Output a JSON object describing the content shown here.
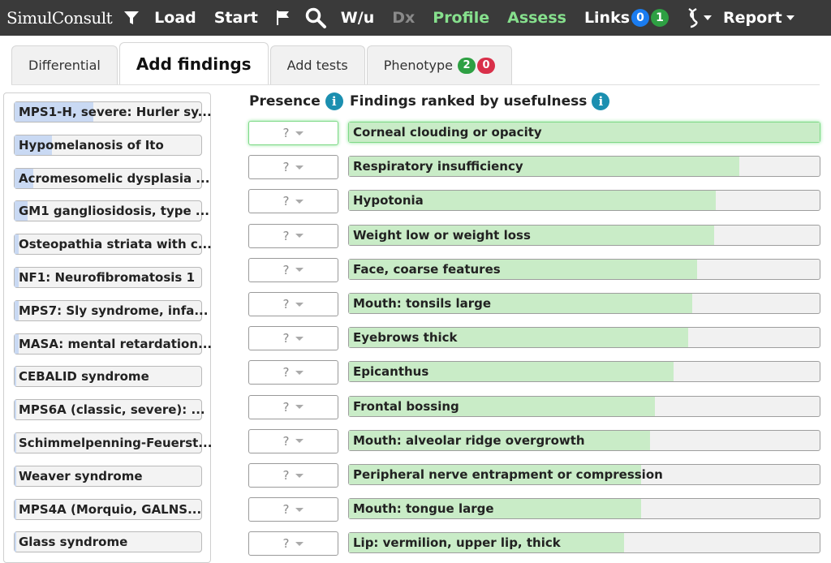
{
  "navbar": {
    "brand": "SimulConsult",
    "load": "Load",
    "start": "Start",
    "wu": "W/u",
    "dx": "Dx",
    "profile": "Profile",
    "assess": "Assess",
    "links": "Links",
    "links_badges": [
      "0",
      "1"
    ],
    "report": "Report",
    "colors": {
      "bar": "#3a3a3a",
      "green_text": "#86e08d",
      "badge_blue": "#1a7cf0",
      "badge_green": "#2ea043"
    }
  },
  "tabs": [
    {
      "label": "Differential",
      "active": false
    },
    {
      "label": "Add findings",
      "active": true
    },
    {
      "label": "Add tests",
      "active": false
    },
    {
      "label": "Phenotype",
      "active": false,
      "badges": [
        "2",
        "0"
      ]
    }
  ],
  "headers": {
    "presence": "Presence",
    "findings": "Findings ranked by usefulness"
  },
  "differential": [
    {
      "label": "MPS1-H, severe: Hurler sy...",
      "fill": 0.42
    },
    {
      "label": "Hypomelanosis of Ito",
      "fill": 0.2
    },
    {
      "label": "Acromesomelic dysplasia ...",
      "fill": 0.1
    },
    {
      "label": "GM1 gangliosidosis, type ...",
      "fill": 0.07
    },
    {
      "label": "Osteopathia striata with c...",
      "fill": 0.02
    },
    {
      "label": "NF1: Neurofibromatosis 1",
      "fill": 0.02
    },
    {
      "label": "MPS7: Sly syndrome, infa...",
      "fill": 0.02
    },
    {
      "label": "MASA: mental retardation...",
      "fill": 0.02
    },
    {
      "label": "CEBALID syndrome",
      "fill": 0.01
    },
    {
      "label": "MPS6A (classic, severe): ...",
      "fill": 0.01
    },
    {
      "label": "Schimmelpenning-Feuerst...",
      "fill": 0.01
    },
    {
      "label": "Weaver syndrome",
      "fill": 0.01
    },
    {
      "label": "MPS4A (Morquio, GALNS...",
      "fill": 0.01
    },
    {
      "label": "Glass syndrome",
      "fill": 0.01
    }
  ],
  "presence_placeholder": "?",
  "findings": [
    {
      "label": "Corneal clouding or opacity",
      "fill": 1.0
    },
    {
      "label": "Respiratory insufficiency",
      "fill": 0.83
    },
    {
      "label": "Hypotonia",
      "fill": 0.78
    },
    {
      "label": "Weight low or weight loss",
      "fill": 0.775
    },
    {
      "label": "Face, coarse features",
      "fill": 0.74
    },
    {
      "label": "Mouth: tonsils large",
      "fill": 0.73
    },
    {
      "label": "Eyebrows thick",
      "fill": 0.72
    },
    {
      "label": "Epicanthus",
      "fill": 0.69
    },
    {
      "label": "Frontal bossing",
      "fill": 0.65
    },
    {
      "label": "Mouth: alveolar ridge overgrowth",
      "fill": 0.64
    },
    {
      "label": "Peripheral nerve entrapment or compression",
      "fill": 0.62
    },
    {
      "label": "Mouth: tongue large",
      "fill": 0.62
    },
    {
      "label": "Lip: vermilion, upper lip, thick",
      "fill": 0.585
    }
  ]
}
